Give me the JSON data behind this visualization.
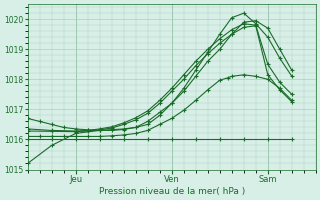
{
  "xlabel": "Pression niveau de la mer( hPa )",
  "bg_color": "#d8efe8",
  "grid_color": "#aacfbf",
  "line_color": "#1a6b2a",
  "ylim": [
    1015.0,
    1020.5
  ],
  "yticks": [
    1015,
    1016,
    1017,
    1018,
    1019,
    1020
  ],
  "xlim": [
    0,
    144
  ],
  "xtick_positions": [
    24,
    72,
    120
  ],
  "xtick_labels": [
    "Jeu",
    "Ven",
    "Sam"
  ],
  "series": [
    {
      "x": [
        0,
        12,
        24,
        36,
        48,
        54,
        60,
        66,
        72,
        78,
        84,
        90,
        96,
        102,
        108,
        114,
        120,
        126,
        132
      ],
      "y": [
        1015.2,
        1015.8,
        1016.2,
        1016.3,
        1016.35,
        1016.4,
        1016.5,
        1016.8,
        1017.2,
        1017.7,
        1018.3,
        1018.9,
        1019.5,
        1020.05,
        1020.2,
        1019.85,
        1019.4,
        1018.7,
        1018.1
      ]
    },
    {
      "x": [
        0,
        6,
        12,
        18,
        24,
        30,
        36,
        42,
        48,
        54,
        60,
        66,
        72,
        78,
        84,
        90,
        96,
        102,
        108,
        114,
        120,
        126,
        132
      ],
      "y": [
        1016.7,
        1016.6,
        1016.5,
        1016.4,
        1016.35,
        1016.32,
        1016.3,
        1016.3,
        1016.33,
        1016.4,
        1016.6,
        1016.9,
        1017.2,
        1017.6,
        1018.1,
        1018.6,
        1019.0,
        1019.5,
        1019.9,
        1019.95,
        1019.7,
        1019.0,
        1018.3
      ]
    },
    {
      "x": [
        0,
        12,
        24,
        30,
        36,
        42,
        48,
        54,
        60,
        66,
        72,
        78,
        84,
        90,
        96,
        102,
        108,
        114,
        120,
        126,
        132
      ],
      "y": [
        1016.35,
        1016.3,
        1016.28,
        1016.3,
        1016.35,
        1016.42,
        1016.55,
        1016.72,
        1016.95,
        1017.3,
        1017.7,
        1018.15,
        1018.6,
        1019.0,
        1019.35,
        1019.65,
        1019.85,
        1019.8,
        1018.5,
        1017.9,
        1017.5
      ]
    },
    {
      "x": [
        0,
        12,
        24,
        30,
        36,
        42,
        48,
        54,
        60,
        66,
        72,
        78,
        84,
        90,
        96,
        102,
        108,
        114,
        120,
        126,
        132
      ],
      "y": [
        1016.28,
        1016.27,
        1016.26,
        1016.28,
        1016.32,
        1016.38,
        1016.5,
        1016.65,
        1016.87,
        1017.2,
        1017.6,
        1018.0,
        1018.45,
        1018.85,
        1019.2,
        1019.5,
        1019.73,
        1019.78,
        1018.15,
        1017.65,
        1017.25
      ]
    },
    {
      "x": [
        0,
        6,
        12,
        18,
        24,
        30,
        36,
        42,
        48,
        54,
        60,
        66,
        72,
        78,
        84,
        90,
        96,
        100,
        102,
        108,
        114,
        120,
        126,
        132
      ],
      "y": [
        1016.1,
        1016.1,
        1016.1,
        1016.1,
        1016.1,
        1016.1,
        1016.1,
        1016.12,
        1016.15,
        1016.2,
        1016.3,
        1016.5,
        1016.7,
        1016.97,
        1017.3,
        1017.65,
        1017.97,
        1018.05,
        1018.1,
        1018.15,
        1018.1,
        1018.0,
        1017.7,
        1017.3
      ]
    },
    {
      "x": [
        0,
        12,
        24,
        36,
        48,
        60,
        72,
        84,
        96,
        108,
        120,
        132
      ],
      "y": [
        1016.0,
        1016.0,
        1016.0,
        1016.0,
        1016.0,
        1016.0,
        1016.0,
        1016.0,
        1016.0,
        1016.0,
        1016.0,
        1016.0
      ]
    }
  ]
}
